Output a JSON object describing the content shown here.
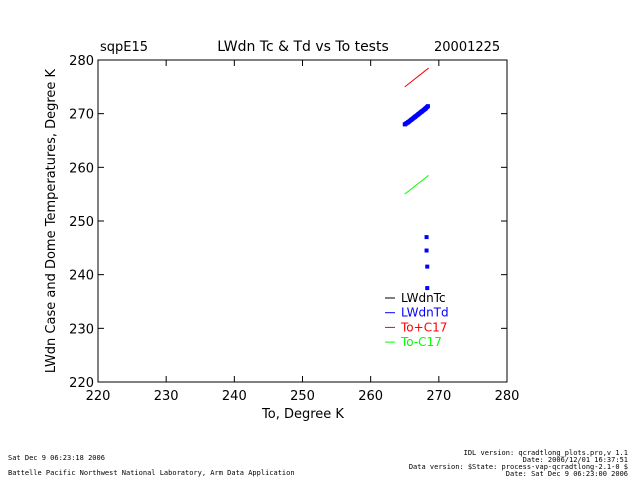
{
  "chart_data": {
    "type": "line",
    "site": "sqpE15",
    "title": "LWdn Tc & Td vs To tests",
    "date": "20001225",
    "xlabel": "To, Degree K",
    "ylabel": "LWdn Case and Dome Temperatures, Degree K",
    "xlim": [
      220,
      280
    ],
    "ylim": [
      220,
      280
    ],
    "xticks": [
      "220",
      "230",
      "240",
      "250",
      "260",
      "270",
      "280"
    ],
    "yticks": [
      "220",
      "230",
      "240",
      "250",
      "260",
      "270",
      "280"
    ],
    "grid": false,
    "legend_position": "lower-right",
    "series": [
      {
        "name": "LWdnTc",
        "color": "#000000",
        "points": []
      },
      {
        "name": "LWdnTd",
        "color": "#0000ff",
        "points": [
          [
            265.0,
            268.0
          ],
          [
            265.5,
            268.4
          ],
          [
            266.0,
            268.9
          ],
          [
            266.5,
            269.4
          ],
          [
            267.0,
            269.9
          ],
          [
            267.5,
            270.4
          ],
          [
            268.0,
            270.9
          ],
          [
            268.4,
            271.4
          ],
          [
            268.2,
            247.0
          ],
          [
            268.2,
            244.5
          ],
          [
            268.3,
            241.5
          ],
          [
            268.3,
            237.5
          ]
        ]
      },
      {
        "name": "To+C17",
        "color": "#ff0000",
        "points": [
          [
            265.0,
            275.0
          ],
          [
            268.5,
            278.5
          ]
        ]
      },
      {
        "name": "To-C17",
        "color": "#00ff00",
        "points": [
          [
            265.0,
            255.0
          ],
          [
            268.5,
            258.5
          ]
        ]
      }
    ]
  },
  "footer": {
    "left_date": "Sat Dec  9 06:23:18 2006",
    "left_org": "Battelle Pacific Northwest National Laboratory, Arm Data Application",
    "right_lines": [
      "IDL version: qcradtlong_plots.pro,v 1.1",
      "Date: 2006/12/01 16:37:51",
      "Data version: $State: process-vap-qcradtlong-2.1-0 $",
      "Date: Sat Dec  9 06:23:00 2006"
    ]
  }
}
